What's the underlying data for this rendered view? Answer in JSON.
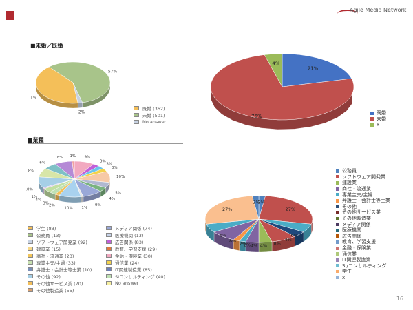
{
  "header": {
    "logo_text": "Agile Media Network",
    "page_number": "16",
    "accent_color": "#b12a30"
  },
  "marital_section": {
    "title": "■未婚／既婚",
    "chart_data": {
      "type": "pie",
      "slices": [
        {
          "label": "未婚",
          "value": 57,
          "color": "#a8c48a",
          "pct_label": "57%"
        },
        {
          "label": "No answer",
          "value": 2,
          "color": "#c7d2e3",
          "pct_label": "2%"
        },
        {
          "label": "既婚",
          "value": 41,
          "color": "#f4bf59",
          "pct_label": "41%"
        }
      ],
      "legend": [
        {
          "label": "既婚 (362)",
          "color": "#f4bf59"
        },
        {
          "label": "未婚 (501)",
          "color": "#a8c48a"
        },
        {
          "label": "No answer",
          "color": "#c7d2e3"
        }
      ]
    }
  },
  "marital_right_chart": {
    "chart_data": {
      "type": "pie",
      "slices": [
        {
          "label": "既婚",
          "value": 21,
          "color": "#4472c4",
          "pct_label": "21%"
        },
        {
          "label": "未婚",
          "value": 75,
          "color": "#c0504d",
          "pct_label": "75%"
        },
        {
          "label": "x",
          "value": 4,
          "color": "#9bbb59",
          "pct_label": "4%"
        }
      ],
      "legend": [
        {
          "label": "既婚",
          "color": "#4472c4"
        },
        {
          "label": "未婚",
          "color": "#c0504d"
        },
        {
          "label": "x",
          "color": "#9bbb59"
        }
      ]
    }
  },
  "industry_section": {
    "title": "■業種",
    "chart_data": {
      "type": "pie",
      "slices": [
        {
          "label": "学生",
          "value": 9,
          "color": "#f2a9c0",
          "pct_label": "9%"
        },
        {
          "label": "メディア関係",
          "value": 3,
          "color": "#c05fd8",
          "pct_label": "3%"
        },
        {
          "label": "医療機関",
          "value": 3,
          "color": "#6cc5ea",
          "pct_label": "3%"
        },
        {
          "label": "広告関係",
          "value": 3,
          "color": "#f3d24b",
          "pct_label": "3%"
        },
        {
          "label": "教育、学習支援",
          "value": 10,
          "color": "#f7c9a6",
          "pct_label": "10%"
        },
        {
          "label": "金融・保険業",
          "value": 5,
          "color": "#b0b8d0",
          "pct_label": "5%"
        },
        {
          "label": "通信業",
          "value": 4,
          "color": "#7ab37f",
          "pct_label": "4%"
        },
        {
          "label": "IT関連製造業",
          "value": 9,
          "color": "#9aa8d8",
          "pct_label": "9%"
        },
        {
          "label": "SIコンサルティング",
          "value": 1,
          "color": "#e8e8e8",
          "pct_label": "1%"
        },
        {
          "label": "公務員",
          "value": 10,
          "color": "#a9d2ef",
          "pct_label": "10%"
        },
        {
          "label": "ソフトウェア開発業",
          "value": 2,
          "color": "#f4bf59",
          "pct_label": "2%"
        },
        {
          "label": "建設業",
          "value": 3,
          "color": "#bfe1b4",
          "pct_label": "3%"
        },
        {
          "label": "商社・流通業",
          "value": 4,
          "color": "#c2dfa2",
          "pct_label": "4%"
        },
        {
          "label": "専業主夫/主婦",
          "value": 1,
          "color": "#d9bfe8",
          "pct_label": "1%"
        },
        {
          "label": "弁護士・会計士等士業",
          "value": 10,
          "color": "#a6cfe6",
          "pct_label": "10%"
        },
        {
          "label": "その他",
          "value": 8,
          "color": "#d8e6a8",
          "pct_label": "8%"
        },
        {
          "label": "その他サービス業",
          "value": 6,
          "color": "#7fc0c6",
          "pct_label": "6%"
        },
        {
          "label": "その他製造業",
          "value": 8,
          "color": "#b58ad6",
          "pct_label": "8%"
        },
        {
          "label": "その他2",
          "value": 1,
          "color": "#f0a0a0",
          "pct_label": "1%"
        }
      ],
      "legend_col1": [
        {
          "label": "学生 (83)",
          "color": "#f4bf59"
        },
        {
          "label": "公務員 (13)",
          "color": "#a8c48a"
        },
        {
          "label": "ソフトウェア開発業 (92)",
          "color": "#c7d2e3"
        },
        {
          "label": "建設業 (15)",
          "color": "#f7d88a"
        },
        {
          "label": "商社・流通業 (23)",
          "color": "#f3c65a"
        },
        {
          "label": "専業主夫/主婦 (33)",
          "color": "#c7e0b0"
        },
        {
          "label": "弁護士・会計士等士業 (10)",
          "color": "#7a8fb8"
        },
        {
          "label": "その他 (92)",
          "color": "#a6cfe6"
        },
        {
          "label": "その他サービス業 (70)",
          "color": "#f4bf59"
        },
        {
          "label": "その他製造業 (55)",
          "color": "#d9a070"
        }
      ],
      "legend_col2": [
        {
          "label": "メディア関係 (74)",
          "color": "#9aa8d8"
        },
        {
          "label": "医療機関 (13)",
          "color": "#c8d4ea"
        },
        {
          "label": "広告関係 (83)",
          "color": "#c05fd8"
        },
        {
          "label": "教育、学習支援 (29)",
          "color": "#e07a40"
        },
        {
          "label": "金融・保険業 (30)",
          "color": "#f2a9c0"
        },
        {
          "label": "通信業 (24)",
          "color": "#f3d24b"
        },
        {
          "label": "IT関連製造業 (85)",
          "color": "#6d7fb8"
        },
        {
          "label": "SIコンサルティング (40)",
          "color": "#bfe1b4"
        },
        {
          "label": "No answer",
          "color": "#f7f0a0"
        }
      ]
    }
  },
  "industry_right_chart": {
    "chart_data": {
      "type": "pie",
      "slices": [
        {
          "label": "公務員",
          "value": 2,
          "color": "#4f81bd",
          "pct_label": "2%"
        },
        {
          "label": "ソフトウェア開発業",
          "value": 27,
          "color": "#c0504d",
          "pct_label": "27%"
        },
        {
          "label": "建設業",
          "value": 6,
          "color": "#4bacc6",
          "pct_label": "6%"
        },
        {
          "label": "商社・流通業",
          "value": 4,
          "color": "#1f497d",
          "pct_label": "4%"
        },
        {
          "label": "専業主夫/主婦",
          "value": 8,
          "color": "#c0504d",
          "pct_label": "8%"
        },
        {
          "label": "弁護士・会計士等士業",
          "value": 4,
          "color": "#9bbb59",
          "pct_label": "4%"
        },
        {
          "label": "その他",
          "value": 4,
          "color": "#8064a2",
          "pct_label": "4%"
        },
        {
          "label": "その他サービス業",
          "value": 2,
          "color": "#4bacc6",
          "pct_label": "2%"
        },
        {
          "label": "その他製造業",
          "value": 2,
          "color": "#f79646",
          "pct_label": "2%"
        },
        {
          "label": "メディア関係",
          "value": 8,
          "color": "#8064a2",
          "pct_label": "8%"
        },
        {
          "label": "医療機関",
          "value": 6,
          "color": "#4bacc6",
          "pct_label": "6%"
        },
        {
          "label": "学生",
          "value": 27,
          "color": "#fabf8f",
          "pct_label": "27%"
        },
        {
          "label": "x",
          "value": 2,
          "color": "#4f81bd",
          "pct_label": "2%"
        }
      ],
      "legend": [
        {
          "label": "公務員",
          "color": "#4f81bd"
        },
        {
          "label": "ソフトウェア開発業",
          "color": "#c0504d"
        },
        {
          "label": "建設業",
          "color": "#9bbb59"
        },
        {
          "label": "商社・流通業",
          "color": "#8064a2"
        },
        {
          "label": "専業主夫/主婦",
          "color": "#4bacc6"
        },
        {
          "label": "弁護士・会計士等士業",
          "color": "#f79646"
        },
        {
          "label": "その他",
          "color": "#2c4d75"
        },
        {
          "label": "その他サービス業",
          "color": "#772c2a"
        },
        {
          "label": "その他製造業",
          "color": "#5f7530"
        },
        {
          "label": "メディア関係",
          "color": "#4d3b62"
        },
        {
          "label": "医療機関",
          "color": "#276a7c"
        },
        {
          "label": "広告関係",
          "color": "#b65708"
        },
        {
          "label": "教育、学習支援",
          "color": "#729aca"
        },
        {
          "label": "金融・保険業",
          "color": "#cd7371"
        },
        {
          "label": "通信業",
          "color": "#afc97a"
        },
        {
          "label": "IT関連製造業",
          "color": "#9983b5"
        },
        {
          "label": "SI/コンサルティング",
          "color": "#6fbdd1"
        },
        {
          "label": "学生",
          "color": "#f9ab6b"
        },
        {
          "label": "x",
          "color": "#95b3d7"
        }
      ]
    }
  }
}
